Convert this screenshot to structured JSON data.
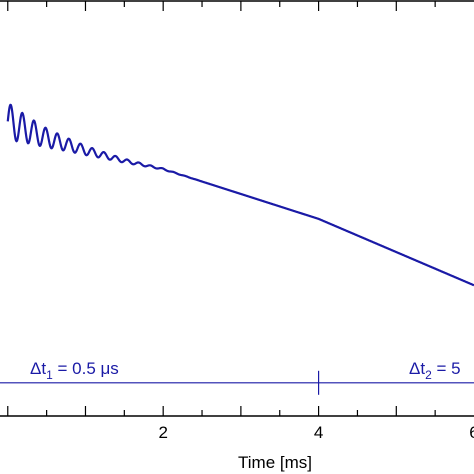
{
  "chart_data": {
    "type": "line",
    "xlabel": "Time [ms]",
    "xlim": [
      -0.1,
      6.0
    ],
    "ylim": [
      0,
      1
    ],
    "x_ticks": [
      2,
      4,
      6
    ],
    "x_tick_labels": [
      "2",
      "4",
      "6"
    ],
    "series": [
      {
        "color": "#1a1aa6",
        "points": [
          [
            0.0,
            0.71
          ],
          [
            0.5,
            0.67
          ],
          [
            1.0,
            0.64
          ],
          [
            1.5,
            0.615
          ],
          [
            2.0,
            0.595
          ],
          [
            2.5,
            0.565
          ],
          [
            3.0,
            0.535
          ],
          [
            3.5,
            0.505
          ],
          [
            4.0,
            0.475
          ],
          [
            4.5,
            0.435
          ],
          [
            5.0,
            0.395
          ],
          [
            5.5,
            0.355
          ],
          [
            6.0,
            0.315
          ]
        ],
        "oscillation": {
          "x_end": 2.5,
          "amplitude_start": 0.045,
          "period": 0.15
        }
      }
    ],
    "annotations": [
      {
        "text_prefix": "Δt",
        "sub": "1",
        "text_suffix": " = 0.5 μs",
        "color": "#1a1aa6"
      },
      {
        "text_prefix": "Δt",
        "sub": "2",
        "text_suffix": " = 5",
        "color": "#1a1aa6"
      }
    ],
    "annotation_line": {
      "y": 0.08,
      "divider_x": 4.0,
      "color": "#1a1aa6"
    }
  }
}
